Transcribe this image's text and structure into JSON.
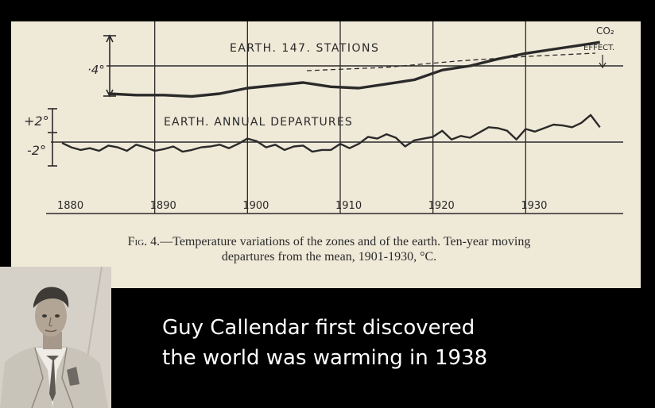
{
  "chart_data": {
    "type": "line",
    "xlim": [
      1880,
      1940
    ],
    "x_ticks": [
      "1880",
      "1890",
      "1900",
      "1910",
      "1920",
      "1930"
    ],
    "panels": [
      {
        "name": "EARTH. 147. STATIONS",
        "scale_label": "·4°",
        "annotation": "CO2 EFFECT.",
        "series": [
          {
            "x": [
              1885,
              1888,
              1891,
              1894,
              1897,
              1900,
              1903,
              1906,
              1909,
              1912,
              1915,
              1918,
              1921,
              1924,
              1927,
              1930,
              1933,
              1936,
              1938
            ],
            "y": [
              -0.2,
              -0.21,
              -0.21,
              -0.22,
              -0.2,
              -0.16,
              -0.14,
              -0.12,
              -0.15,
              -0.16,
              -0.13,
              -0.1,
              -0.03,
              0.0,
              0.05,
              0.09,
              0.12,
              0.15,
              0.17
            ]
          }
        ]
      },
      {
        "name": "EARTH. ANNUAL DEPARTURES",
        "scale_labels": [
          "+2°",
          "-2°"
        ],
        "series": [
          {
            "x": [
              1880,
              1881,
              1882,
              1883,
              1884,
              1885,
              1886,
              1887,
              1888,
              1889,
              1890,
              1891,
              1892,
              1893,
              1894,
              1895,
              1896,
              1897,
              1898,
              1899,
              1900,
              1901,
              1902,
              1903,
              1904,
              1905,
              1906,
              1907,
              1908,
              1909,
              1910,
              1911,
              1912,
              1913,
              1914,
              1915,
              1916,
              1917,
              1918,
              1919,
              1920,
              1921,
              1922,
              1923,
              1924,
              1925,
              1926,
              1927,
              1928,
              1929,
              1930,
              1931,
              1932,
              1933,
              1934,
              1935,
              1936,
              1937,
              1938
            ],
            "y": [
              -0.1,
              -0.6,
              -0.9,
              -0.7,
              -1.0,
              -0.4,
              -0.6,
              -1.0,
              -0.3,
              -0.6,
              -1.0,
              -0.8,
              -0.5,
              -1.1,
              -0.9,
              -0.6,
              -0.5,
              -0.3,
              -0.7,
              -0.2,
              0.4,
              0.1,
              -0.6,
              -0.3,
              -0.9,
              -0.5,
              -0.4,
              -1.1,
              -0.9,
              -0.9,
              -0.2,
              -0.7,
              -0.2,
              0.6,
              0.4,
              0.9,
              0.5,
              -0.5,
              0.2,
              0.4,
              0.6,
              1.3,
              0.3,
              0.7,
              0.5,
              1.1,
              1.7,
              1.6,
              1.3,
              0.3,
              1.5,
              1.2,
              1.6,
              2.0,
              1.9,
              1.7,
              2.2,
              3.1,
              1.7
            ]
          }
        ]
      }
    ]
  },
  "figure": {
    "caption_prefix": "Fig. 4.—",
    "caption_line1": "Temperature variations of the zones and of the earth.   Ten-year moving",
    "caption_line2": "departures from the mean, 1901-1930, °C."
  },
  "banner": {
    "line1": "Guy Callendar first discovered",
    "line2": "the world was warming in 1938"
  },
  "colors": {
    "paper": "#efe9d8",
    "ink": "#2a2a2a",
    "background": "#000000",
    "banner_text": "#ffffff"
  }
}
